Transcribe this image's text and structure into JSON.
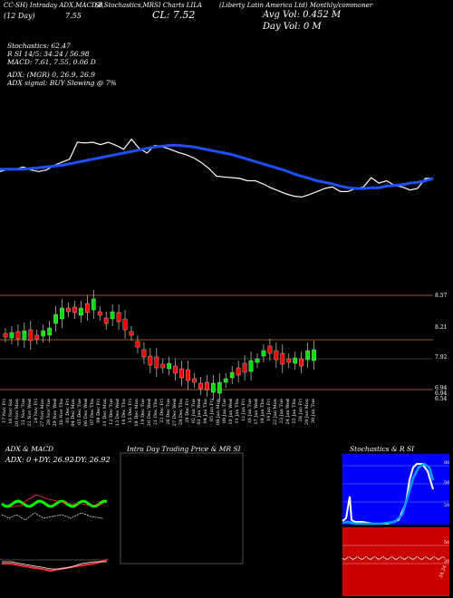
{
  "header": {
    "line1": [
      "CC-SH) Intraday ADX,MACD,B",
      "SI,Stochastics,MR",
      "SI Charts LILA",
      "(Liberty Latin America Ltd) Monthly/commoner"
    ],
    "day_label": "(12 Day)",
    "day_change": "7.55",
    "close_label": "CL: 7.52",
    "avg_vol": "Avg Vol: 0.452 M",
    "day_vol": "Day Vol: 0 M"
  },
  "indicators": {
    "stochastics": "Stochastics: 62.47",
    "rsi": "R                    SI 14/5: 34.24  / 56.98",
    "macd": "MACD: 7.61, 7.55, 0.06  D",
    "adx": "ADX:                                    (MGR) 0, 26.9, 26.9",
    "adx_signal": "ADX  signal:                                            BUY Slowing @ 7%"
  },
  "chart_data": [
    {
      "type": "line",
      "name": "price-overview",
      "series": [
        {
          "values": [
            7.42,
            7.45,
            7.45,
            7.48,
            7.44,
            7.42,
            7.44,
            7.5,
            7.54,
            7.58,
            7.8,
            7.79,
            7.8,
            7.77,
            7.8,
            7.76,
            7.71,
            7.84,
            7.72,
            7.66,
            7.76,
            7.74,
            7.71,
            7.67,
            7.64,
            7.6,
            7.54,
            7.46,
            7.36,
            7.35,
            7.34,
            7.33,
            7.3,
            7.3,
            7.26,
            7.21,
            7.17,
            7.13,
            7.1,
            7.09,
            7.12,
            7.16,
            7.2,
            7.22,
            7.16,
            7.16,
            7.2,
            7.22,
            7.34,
            7.27,
            7.3,
            7.24,
            7.22,
            7.18,
            7.2,
            7.33,
            7.33
          ],
          "color": "#ffffff"
        },
        {
          "values": [
            7.45,
            7.45,
            7.45,
            7.45,
            7.46,
            7.47,
            7.48,
            7.49,
            7.5,
            7.52,
            7.54,
            7.56,
            7.58,
            7.6,
            7.62,
            7.64,
            7.66,
            7.68,
            7.7,
            7.72,
            7.74,
            7.75,
            7.76,
            7.76,
            7.75,
            7.74,
            7.72,
            7.7,
            7.68,
            7.66,
            7.64,
            7.61,
            7.58,
            7.55,
            7.52,
            7.49,
            7.46,
            7.43,
            7.39,
            7.36,
            7.33,
            7.3,
            7.28,
            7.26,
            7.23,
            7.21,
            7.2,
            7.2,
            7.21,
            7.21,
            7.23,
            7.24,
            7.25,
            7.27,
            7.28,
            7.3,
            7.33
          ],
          "color": "#1e50ff"
        }
      ]
    },
    {
      "type": "candlestick",
      "name": "daily-candles",
      "price_labels": [
        "8.57",
        "8.21",
        "7.92",
        "6.94",
        "6.94",
        "6.54"
      ],
      "x": [
        "17 Nov Fri",
        "18 Nov Sat",
        "20 Nov Mon",
        "21 Nov Tue",
        "22 Nov Wed",
        "24 Nov Fri",
        "27 Nov Mon",
        "28 Nov Tue",
        "29 Nov Wed",
        "30 Nov Thu",
        "01 Dec Fri",
        "04 Dec Mon",
        "05 Dec Tue",
        "06 Dec Wed",
        "07 Dec Thu",
        "08 Dec Fri",
        "11 Dec Mon",
        "12 Dec Tue",
        "13 Dec Wed",
        "14 Dec Thu",
        "15 Dec Fri",
        "18 Dec Mon",
        "19 Dec Tue",
        "20 Dec Wed",
        "21 Dec Thu",
        "22 Dec Fri",
        "26 Dec Tue",
        "27 Dec Wed",
        "28 Dec Thu",
        "29 Dec Fri",
        "02 Jan Tue",
        "03 Jan Wed",
        "04 Jan Thu",
        "05 Jan Fri",
        "08 Jan Mon",
        "09 Jan Tue",
        "10 Jan Wed",
        "11 Jan Thu",
        "12 Jan Fri",
        "16 Jan Tue",
        "17 Jan Wed",
        "18 Jan Thu",
        "19 Jan Fri",
        "22 Jan Mon",
        "23 Jan Tue",
        "24 Jan Wed",
        "25 Jan Thu",
        "26 Jan Fri",
        "29 Jan Mon",
        "30 Jan Tue"
      ]
    },
    {
      "type": "line",
      "name": "adx-macd",
      "title": "ADX  & MACD",
      "labels": [
        "ADX: 0",
        "+DY: 26.92",
        "-DY: 26.92"
      ]
    },
    {
      "type": "line",
      "name": "intraday",
      "title": "Intra  Day Trading Price  & MR                                SI"
    },
    {
      "type": "line",
      "name": "stochastics-rsi",
      "title": "Stochastics & R                    SI",
      "stoch_ticks": [
        "80",
        "50",
        "20"
      ],
      "rsi_ticks": [
        "50",
        "20",
        "34.24"
      ]
    }
  ]
}
